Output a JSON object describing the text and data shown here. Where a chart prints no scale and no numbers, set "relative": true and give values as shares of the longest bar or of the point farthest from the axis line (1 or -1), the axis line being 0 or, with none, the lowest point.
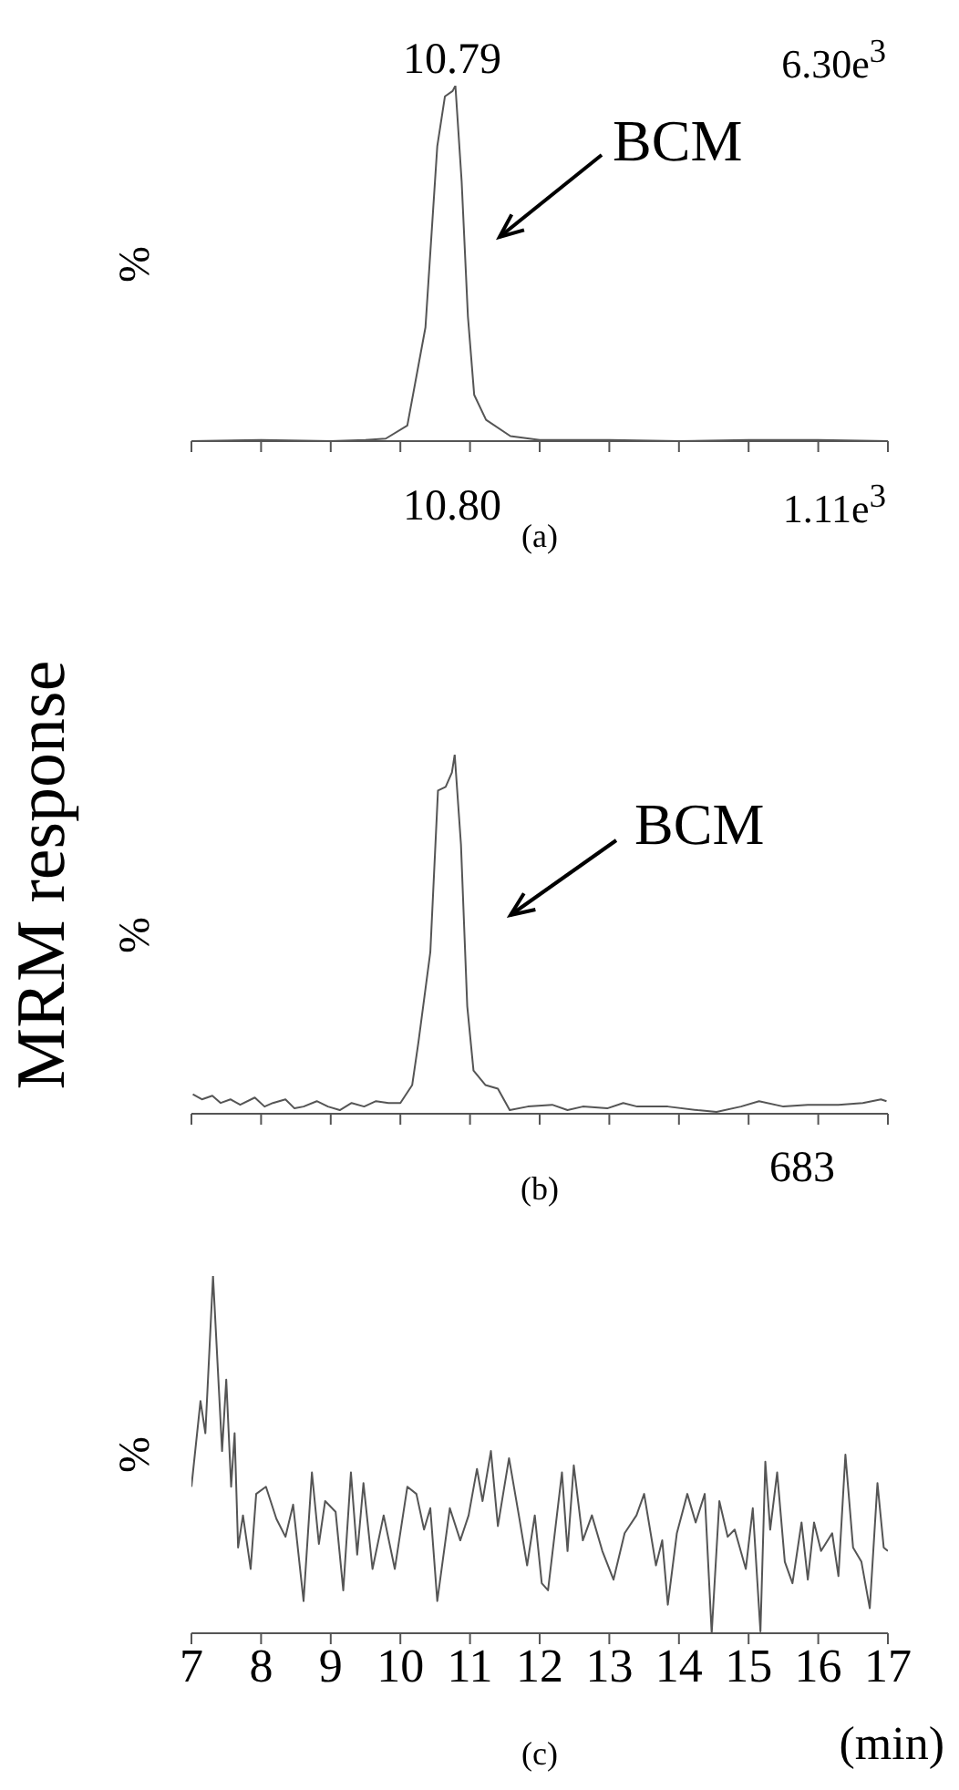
{
  "chart_data": [
    {
      "type": "line",
      "title": "(a)",
      "ylabel": "%",
      "relative": true,
      "color": "#555555",
      "tick_labels": false,
      "xlim": [
        7,
        17
      ],
      "xticks": [
        {
          "value": 7,
          "label": null
        },
        {
          "value": 8,
          "label": null
        },
        {
          "value": 9,
          "label": null
        },
        {
          "value": 10,
          "label": null
        },
        {
          "value": 11,
          "label": null
        },
        {
          "value": 12,
          "label": null
        },
        {
          "value": 13,
          "label": null
        },
        {
          "value": 14,
          "label": null
        },
        {
          "value": 15,
          "label": null
        },
        {
          "value": 16,
          "label": null
        },
        {
          "value": 17,
          "label": null
        }
      ],
      "annotations": [
        "10.79",
        "6.30e$^{3}$",
        "BCM",
        "10.80",
        "1.11e$^{3}$"
      ],
      "x": [
        7,
        8,
        9,
        9.5,
        9.79,
        10.1,
        10.36,
        10.53,
        10.64,
        10.75,
        10.79,
        10.88,
        10.97,
        11.06,
        11.23,
        11.58,
        12,
        13,
        14,
        15,
        16,
        17
      ],
      "values": [
        0,
        0.003,
        0,
        0.003,
        0.007,
        0.044,
        0.32,
        0.83,
        0.97,
        0.985,
        1,
        0.73,
        0.35,
        0.13,
        0.06,
        0.014,
        0.003,
        0.003,
        0,
        0.003,
        0.003,
        0
      ]
    },
    {
      "type": "line",
      "title": "(b)",
      "ylabel": "%",
      "relative": true,
      "color": "#555555",
      "tick_labels": false,
      "xlim": [
        7,
        17
      ],
      "xticks": [
        {
          "value": 7,
          "label": null
        },
        {
          "value": 8,
          "label": null
        },
        {
          "value": 9,
          "label": null
        },
        {
          "value": 10,
          "label": null
        },
        {
          "value": 11,
          "label": null
        },
        {
          "value": 12,
          "label": null
        },
        {
          "value": 13,
          "label": null
        },
        {
          "value": 14,
          "label": null
        },
        {
          "value": 15,
          "label": null
        },
        {
          "value": 16,
          "label": null
        },
        {
          "value": 17,
          "label": null
        }
      ],
      "annotations": [
        "BCM",
        "MRM response",
        "683"
      ],
      "x": [
        7.02,
        7.15,
        7.3,
        7.42,
        7.56,
        7.7,
        7.91,
        8.05,
        8.17,
        8.35,
        8.48,
        8.61,
        8.8,
        8.96,
        9.13,
        9.3,
        9.48,
        9.65,
        9.83,
        10,
        10.17,
        10.26,
        10.43,
        10.54,
        10.65,
        10.74,
        10.78,
        10.87,
        10.96,
        11.05,
        11.22,
        11.4,
        11.57,
        11.83,
        12.18,
        12.4,
        12.62,
        12.97,
        13.2,
        13.4,
        13.84,
        14.27,
        14.54,
        14.89,
        15.15,
        15.5,
        15.85,
        16.29,
        16.64,
        16.9,
        16.98
      ],
      "values": [
        0.054,
        0.04,
        0.05,
        0.03,
        0.04,
        0.025,
        0.045,
        0.02,
        0.03,
        0.04,
        0.015,
        0.02,
        0.035,
        0.02,
        0.01,
        0.03,
        0.02,
        0.035,
        0.03,
        0.03,
        0.08,
        0.2,
        0.45,
        0.9,
        0.91,
        0.95,
        1,
        0.75,
        0.3,
        0.12,
        0.08,
        0.07,
        0.01,
        0.02,
        0.025,
        0.01,
        0.02,
        0.015,
        0.03,
        0.02,
        0.02,
        0.01,
        0.005,
        0.02,
        0.035,
        0.02,
        0.025,
        0.025,
        0.03,
        0.04,
        0.035
      ]
    },
    {
      "type": "line",
      "title": "(c)",
      "ylabel": "%",
      "xlabel": "(min)",
      "relative": true,
      "color": "#555555",
      "tick_labels": "x",
      "xlim": [
        7,
        17
      ],
      "xticks": [
        7,
        8,
        9,
        10,
        11,
        12,
        13,
        14,
        15,
        16,
        17
      ],
      "x": [
        7.0,
        7.13,
        7.2,
        7.31,
        7.44,
        7.5,
        7.57,
        7.62,
        7.67,
        7.74,
        7.85,
        7.93,
        8.07,
        8.22,
        8.35,
        8.46,
        8.61,
        8.73,
        8.83,
        8.92,
        9.07,
        9.18,
        9.29,
        9.38,
        9.47,
        9.6,
        9.76,
        9.92,
        10.1,
        10.23,
        10.34,
        10.43,
        10.53,
        10.71,
        10.86,
        10.98,
        11.1,
        11.18,
        11.3,
        11.4,
        11.56,
        11.71,
        11.82,
        11.93,
        12.03,
        12.12,
        12.32,
        12.4,
        12.49,
        12.62,
        12.75,
        12.9,
        13.06,
        13.22,
        13.39,
        13.5,
        13.67,
        13.76,
        13.84,
        13.97,
        14.12,
        14.24,
        14.37,
        14.47,
        14.58,
        14.7,
        14.8,
        14.96,
        15.06,
        15.17,
        15.24,
        15.31,
        15.41,
        15.52,
        15.63,
        15.76,
        15.85,
        15.94,
        16.04,
        16.2,
        16.29,
        16.39,
        16.5,
        16.62,
        16.74,
        16.85,
        16.94,
        17.0
      ],
      "values": [
        0.41,
        0.65,
        0.56,
        1,
        0.51,
        0.71,
        0.41,
        0.56,
        0.24,
        0.33,
        0.18,
        0.39,
        0.41,
        0.32,
        0.27,
        0.36,
        0.09,
        0.45,
        0.25,
        0.37,
        0.34,
        0.12,
        0.45,
        0.22,
        0.42,
        0.18,
        0.33,
        0.18,
        0.41,
        0.39,
        0.29,
        0.35,
        0.09,
        0.35,
        0.26,
        0.33,
        0.46,
        0.37,
        0.51,
        0.3,
        0.49,
        0.32,
        0.19,
        0.33,
        0.14,
        0.12,
        0.45,
        0.23,
        0.47,
        0.26,
        0.33,
        0.23,
        0.15,
        0.28,
        0.33,
        0.39,
        0.19,
        0.26,
        0.08,
        0.28,
        0.39,
        0.31,
        0.39,
        0,
        0.37,
        0.27,
        0.29,
        0.18,
        0.35,
        0.005,
        0.48,
        0.29,
        0.45,
        0.2,
        0.14,
        0.31,
        0.15,
        0.31,
        0.23,
        0.28,
        0.16,
        0.5,
        0.24,
        0.2,
        0.07,
        0.42,
        0.24,
        0.23
      ]
    }
  ]
}
